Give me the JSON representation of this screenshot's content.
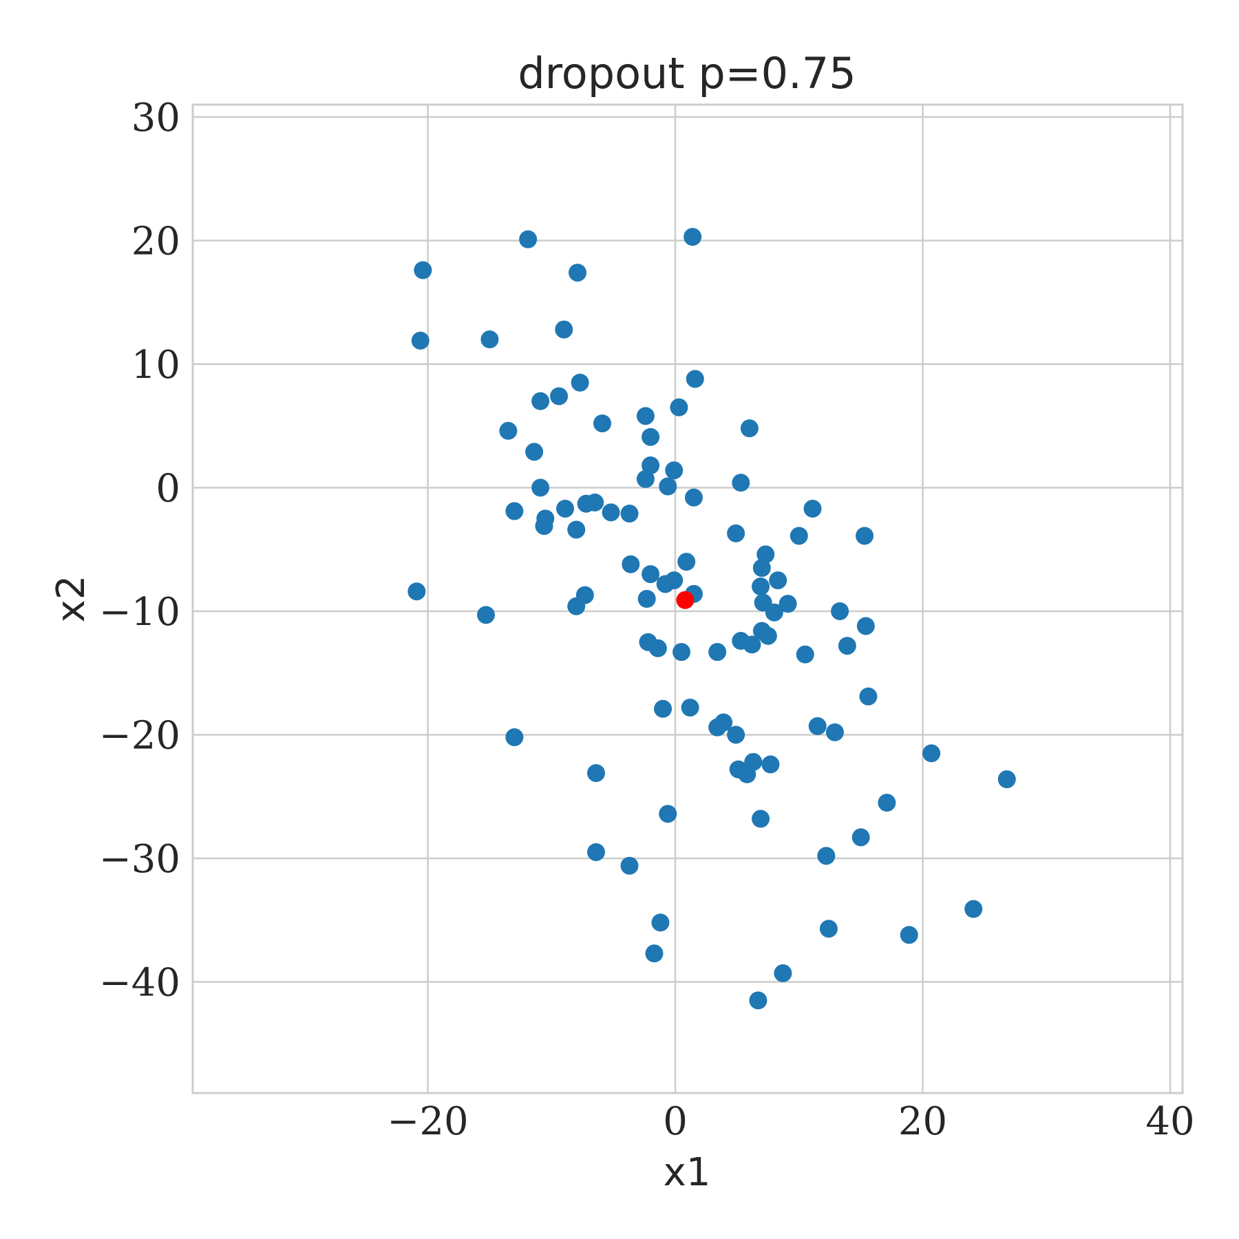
{
  "chart_data": {
    "type": "scatter",
    "title": "dropout p=0.75",
    "xlabel": "x1",
    "ylabel": "x2",
    "xlim": [
      -39,
      41
    ],
    "ylim": [
      -49,
      31
    ],
    "xticks": [
      -20,
      0,
      20,
      40
    ],
    "xtick_labels": [
      "−20",
      "0",
      "20",
      "40"
    ],
    "yticks": [
      30,
      20,
      10,
      0,
      -10,
      -20,
      -30,
      -40
    ],
    "ytick_labels": [
      "30",
      "20",
      "10",
      "0",
      "−10",
      "−20",
      "−30",
      "−40"
    ],
    "grid": true,
    "series": [
      {
        "color": "#1f77b4",
        "points": [
          [
            -11.9,
            20.1
          ],
          [
            1.4,
            20.3
          ],
          [
            -20.4,
            17.6
          ],
          [
            -7.9,
            17.4
          ],
          [
            -20.6,
            11.9
          ],
          [
            -15.0,
            12.0
          ],
          [
            -9.0,
            12.8
          ],
          [
            -7.7,
            8.5
          ],
          [
            1.6,
            8.8
          ],
          [
            -10.9,
            7.0
          ],
          [
            -9.4,
            7.4
          ],
          [
            0.3,
            6.5
          ],
          [
            -5.9,
            5.2
          ],
          [
            -2.4,
            5.8
          ],
          [
            -13.5,
            4.6
          ],
          [
            -2.0,
            4.1
          ],
          [
            6.0,
            4.8
          ],
          [
            -11.4,
            2.9
          ],
          [
            -2.0,
            1.8
          ],
          [
            -0.1,
            1.4
          ],
          [
            -2.4,
            0.7
          ],
          [
            -0.6,
            0.1
          ],
          [
            5.3,
            0.4
          ],
          [
            -10.9,
            0.0
          ],
          [
            1.5,
            -0.8
          ],
          [
            -7.2,
            -1.3
          ],
          [
            -6.5,
            -1.2
          ],
          [
            -8.9,
            -1.7
          ],
          [
            -13.0,
            -1.9
          ],
          [
            -5.2,
            -2.0
          ],
          [
            -3.7,
            -2.1
          ],
          [
            -10.5,
            -2.5
          ],
          [
            -10.6,
            -3.1
          ],
          [
            -8.0,
            -3.4
          ],
          [
            11.1,
            -1.7
          ],
          [
            4.9,
            -3.7
          ],
          [
            10.0,
            -3.9
          ],
          [
            15.3,
            -3.9
          ],
          [
            7.3,
            -5.4
          ],
          [
            -3.6,
            -6.2
          ],
          [
            0.9,
            -6.0
          ],
          [
            7.0,
            -6.5
          ],
          [
            -2.0,
            -7.0
          ],
          [
            -0.1,
            -7.5
          ],
          [
            -0.8,
            -7.8
          ],
          [
            8.3,
            -7.5
          ],
          [
            6.9,
            -8.0
          ],
          [
            -20.9,
            -8.4
          ],
          [
            -7.3,
            -8.7
          ],
          [
            1.5,
            -8.6
          ],
          [
            -2.3,
            -9.0
          ],
          [
            7.1,
            -9.3
          ],
          [
            9.1,
            -9.4
          ],
          [
            -8.0,
            -9.6
          ],
          [
            8.0,
            -10.1
          ],
          [
            13.3,
            -10.0
          ],
          [
            -15.3,
            -10.3
          ],
          [
            15.4,
            -11.2
          ],
          [
            7.0,
            -11.6
          ],
          [
            7.5,
            -12.0
          ],
          [
            5.3,
            -12.4
          ],
          [
            6.2,
            -12.7
          ],
          [
            -2.2,
            -12.5
          ],
          [
            -1.4,
            -13.0
          ],
          [
            0.5,
            -13.3
          ],
          [
            3.4,
            -13.3
          ],
          [
            10.5,
            -13.5
          ],
          [
            13.9,
            -12.8
          ],
          [
            15.6,
            -16.9
          ],
          [
            -1.0,
            -17.9
          ],
          [
            1.2,
            -17.8
          ],
          [
            3.9,
            -19.0
          ],
          [
            3.4,
            -19.4
          ],
          [
            4.9,
            -20.0
          ],
          [
            11.5,
            -19.3
          ],
          [
            12.9,
            -19.8
          ],
          [
            -13.0,
            -20.2
          ],
          [
            20.7,
            -21.5
          ],
          [
            6.3,
            -22.2
          ],
          [
            7.7,
            -22.4
          ],
          [
            5.1,
            -22.8
          ],
          [
            5.8,
            -23.2
          ],
          [
            -6.4,
            -23.1
          ],
          [
            26.8,
            -23.6
          ],
          [
            17.1,
            -25.5
          ],
          [
            -0.6,
            -26.4
          ],
          [
            6.9,
            -26.8
          ],
          [
            15.0,
            -28.3
          ],
          [
            12.2,
            -29.8
          ],
          [
            -6.4,
            -29.5
          ],
          [
            -3.7,
            -30.6
          ],
          [
            24.1,
            -34.1
          ],
          [
            -1.2,
            -35.2
          ],
          [
            12.4,
            -35.7
          ],
          [
            18.9,
            -36.2
          ],
          [
            -1.7,
            -37.7
          ],
          [
            8.7,
            -39.3
          ],
          [
            6.7,
            -41.5
          ]
        ]
      },
      {
        "color": "#ff0000",
        "points": [
          [
            0.8,
            -9.1
          ]
        ]
      }
    ]
  }
}
